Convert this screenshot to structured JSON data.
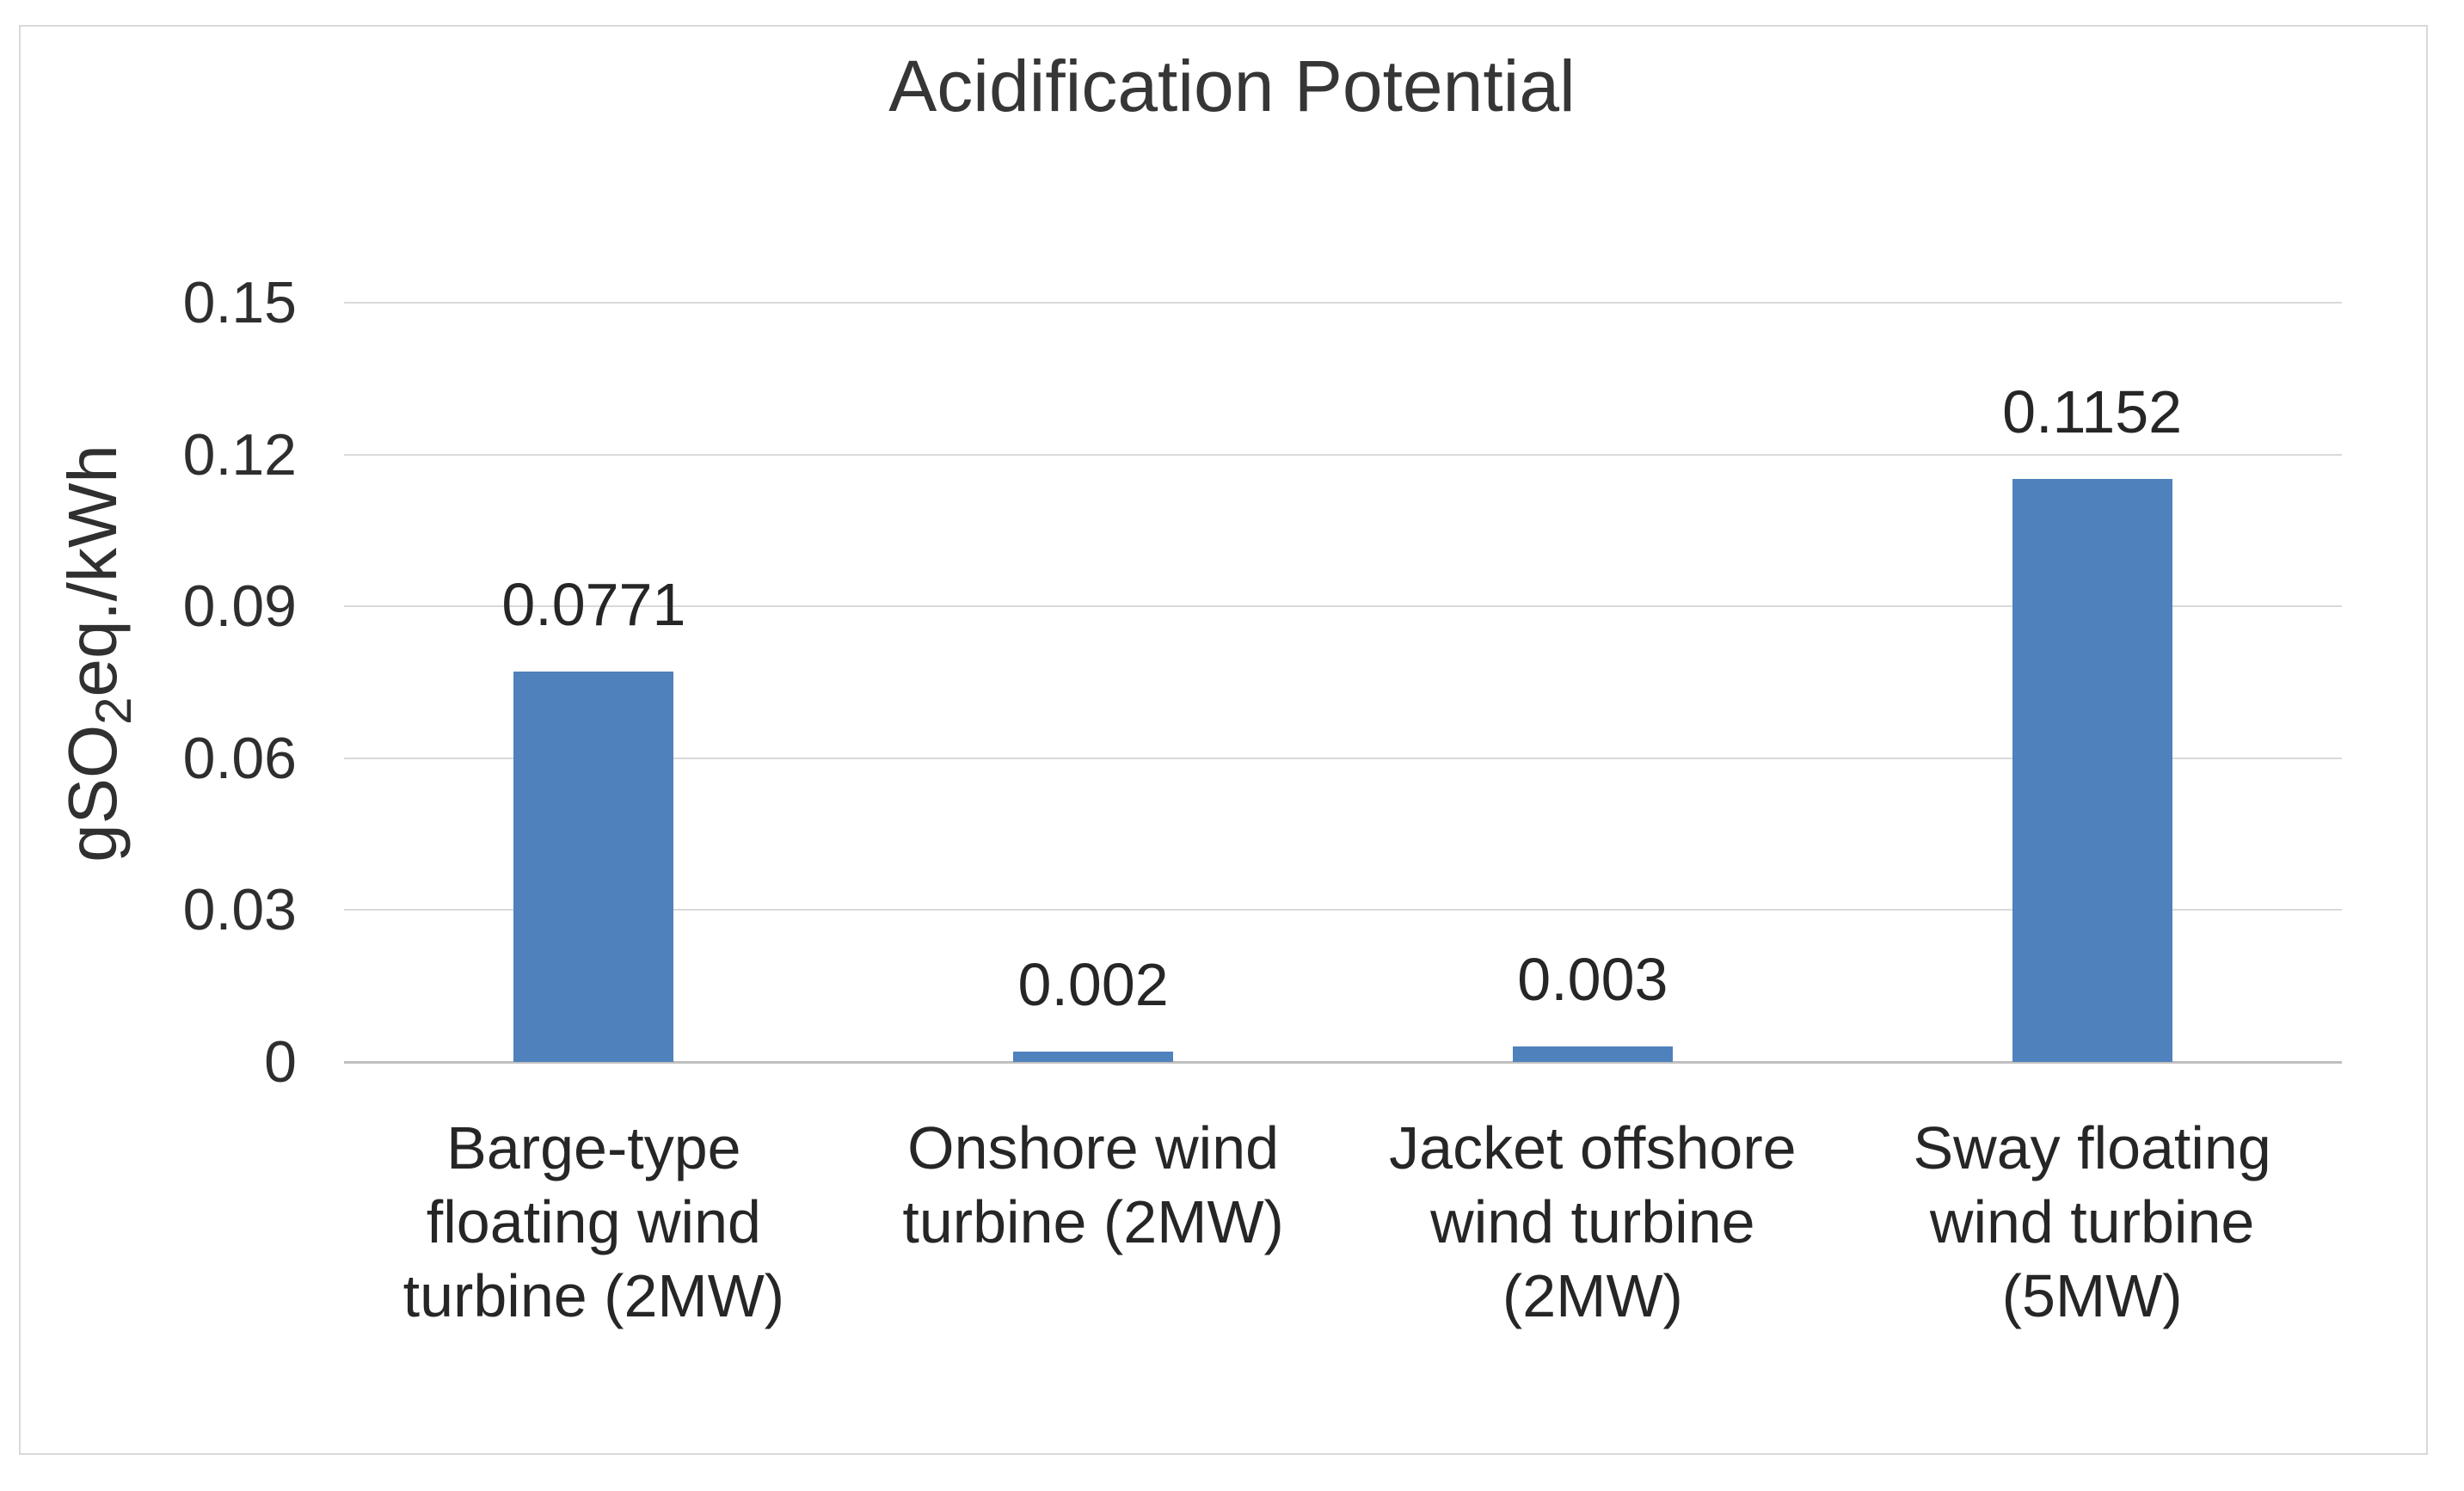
{
  "chart_data": {
    "type": "bar",
    "title": "Acidification Potential",
    "ylabel": {
      "prefix": "gSO",
      "sub": "2",
      "suffix": "eq./kWh"
    },
    "ylim": [
      0,
      0.15
    ],
    "yticks": [
      {
        "value": 0,
        "label": "0"
      },
      {
        "value": 0.03,
        "label": "0.03"
      },
      {
        "value": 0.06,
        "label": "0.06"
      },
      {
        "value": 0.09,
        "label": "0.09"
      },
      {
        "value": 0.12,
        "label": "0.12"
      },
      {
        "value": 0.15,
        "label": "0.15"
      }
    ],
    "grid": true,
    "legend": "none",
    "categories": [
      "Barge-type\nfloating wind\nturbine (2MW)",
      "Onshore wind\nturbine (2MW)",
      "Jacket offshore\nwind turbine\n(2MW)",
      "Sway floating\nwind turbine\n(5MW)"
    ],
    "values": [
      0.0771,
      0.002,
      0.003,
      0.1152
    ],
    "data_labels": [
      "0.0771",
      "0.002",
      "0.003",
      "0.1152"
    ],
    "bar_color": "#4F81BD"
  }
}
